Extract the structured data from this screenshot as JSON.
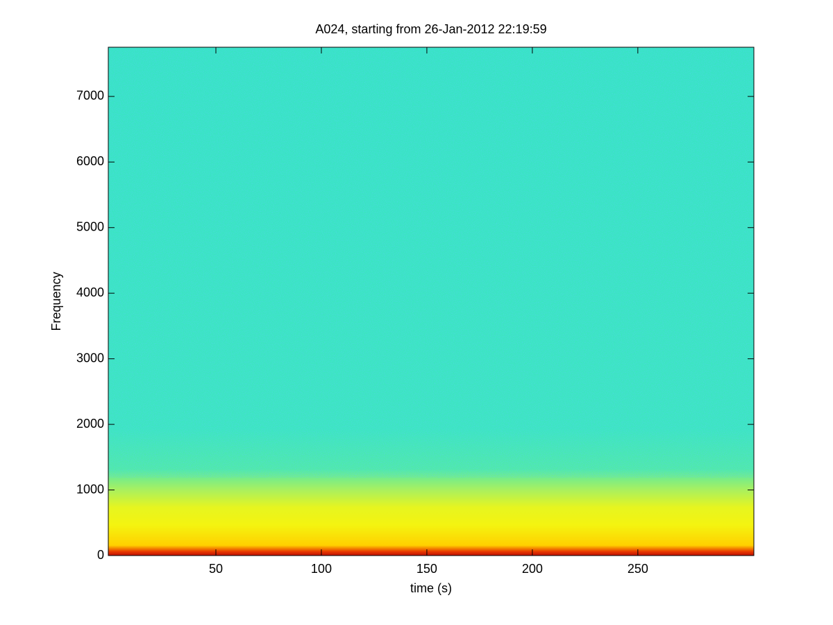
{
  "chart_data": {
    "type": "spectrogram",
    "title": "A024, starting from 26-Jan-2012 22:19:59",
    "x_label": "time (s)",
    "y_label": "Frequency",
    "xlim": [
      -1,
      305
    ],
    "xticks": [
      50,
      100,
      150,
      200,
      250
    ],
    "ylim": [
      0,
      7750
    ],
    "yticks": [
      0,
      1000,
      2000,
      3000,
      4000,
      5000,
      6000,
      7000
    ],
    "colormap": "jet"
  }
}
